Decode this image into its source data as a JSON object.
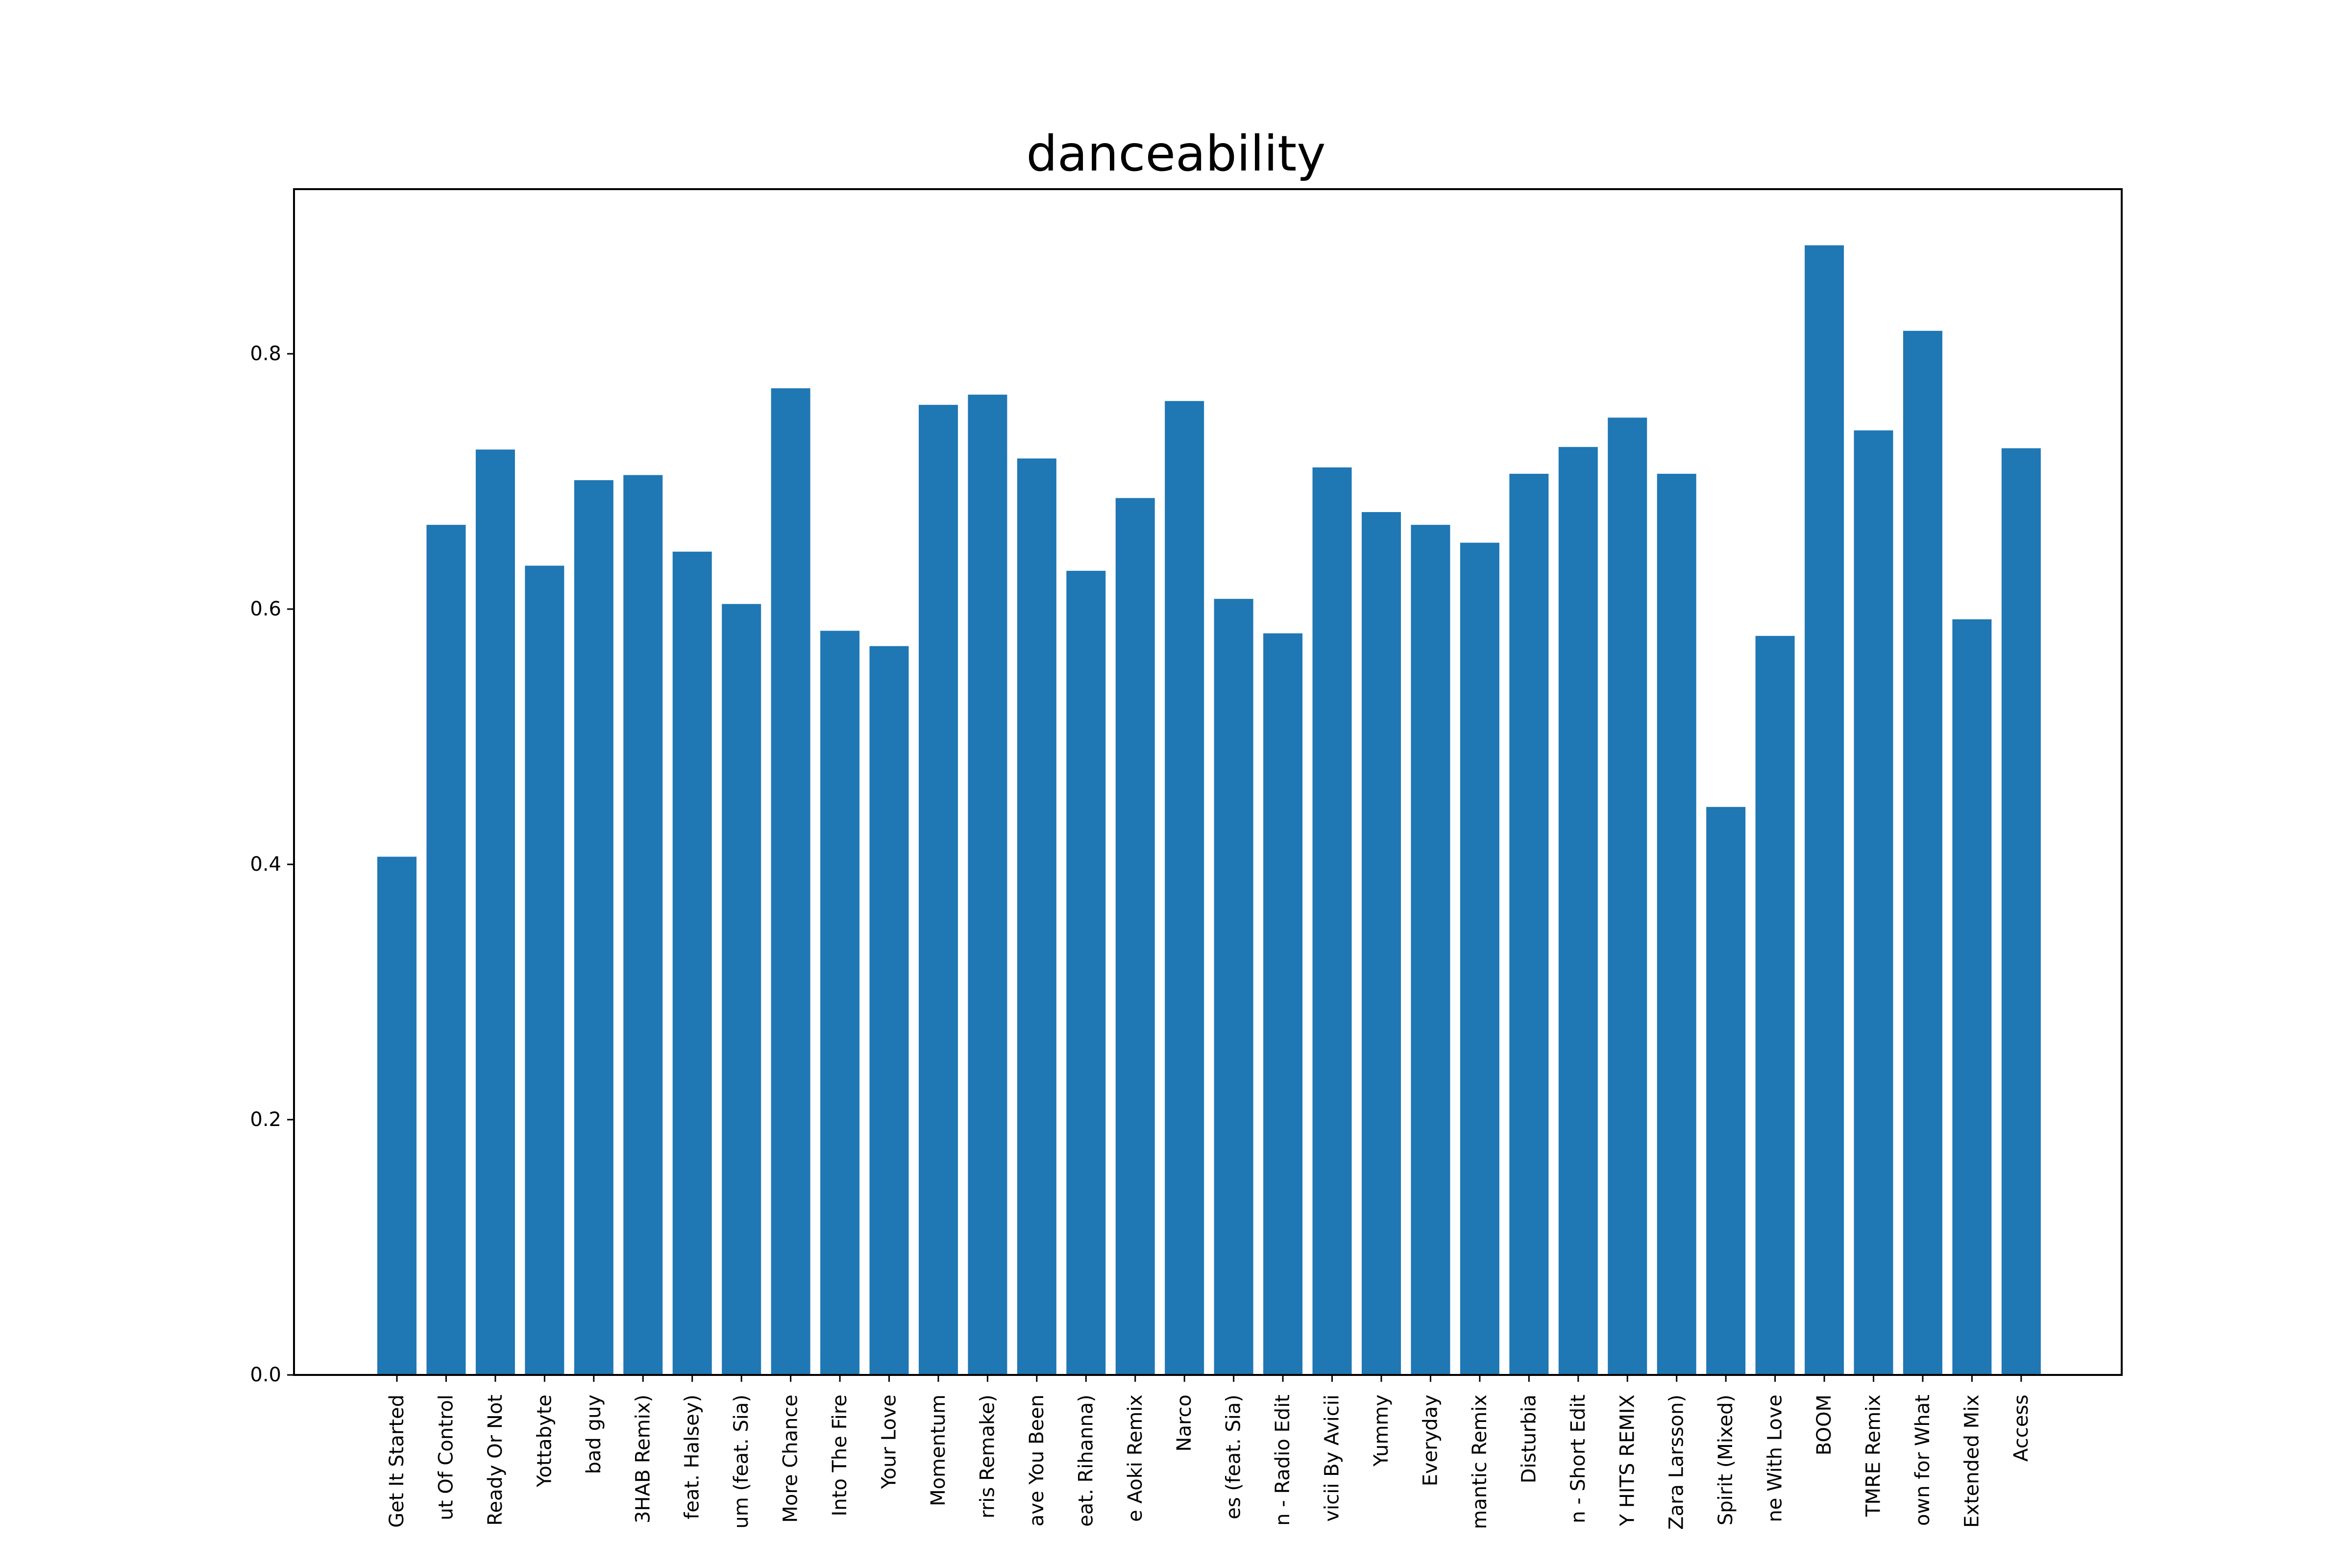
{
  "chart_data": {
    "type": "bar",
    "title": "danceability",
    "xlabel": "",
    "ylabel": "",
    "ylim": [
      0,
      0.929
    ],
    "yticks": [
      0.0,
      0.2,
      0.4,
      0.6,
      0.8
    ],
    "ytick_labels": [
      "0.0",
      "0.2",
      "0.4",
      "0.6",
      "0.8"
    ],
    "grid": false,
    "bar_color": "#1f77b4",
    "categories": [
      "Get It Started",
      "ut Of Control",
      "Ready Or Not",
      "Yottabyte",
      "bad guy",
      "3HAB Remix)",
      "feat. Halsey)",
      "um (feat. Sia)",
      "More Chance",
      "Into The Fire",
      "Your Love",
      "Momentum",
      "rris Remake)",
      "ave You Been",
      "eat. Rihanna)",
      "e Aoki Remix",
      "Narco",
      "es (feat. Sia)",
      "n - Radio Edit",
      "vicii By Avicii",
      "Yummy",
      "Everyday",
      "mantic Remix",
      "Disturbia",
      "n - Short Edit",
      "Y HITS REMIX",
      "Zara Larsson)",
      "Spirit (Mixed)",
      "ne With Love",
      "BOOM",
      "TMRE Remix",
      "own for What",
      "Extended Mix",
      "Access"
    ],
    "values": [
      0.406,
      0.666,
      0.725,
      0.634,
      0.701,
      0.705,
      0.645,
      0.604,
      0.773,
      0.583,
      0.571,
      0.76,
      0.768,
      0.718,
      0.63,
      0.687,
      0.763,
      0.608,
      0.581,
      0.711,
      0.676,
      0.666,
      0.652,
      0.706,
      0.727,
      0.75,
      0.706,
      0.445,
      0.579,
      0.885,
      0.74,
      0.818,
      0.592,
      0.726
    ]
  }
}
